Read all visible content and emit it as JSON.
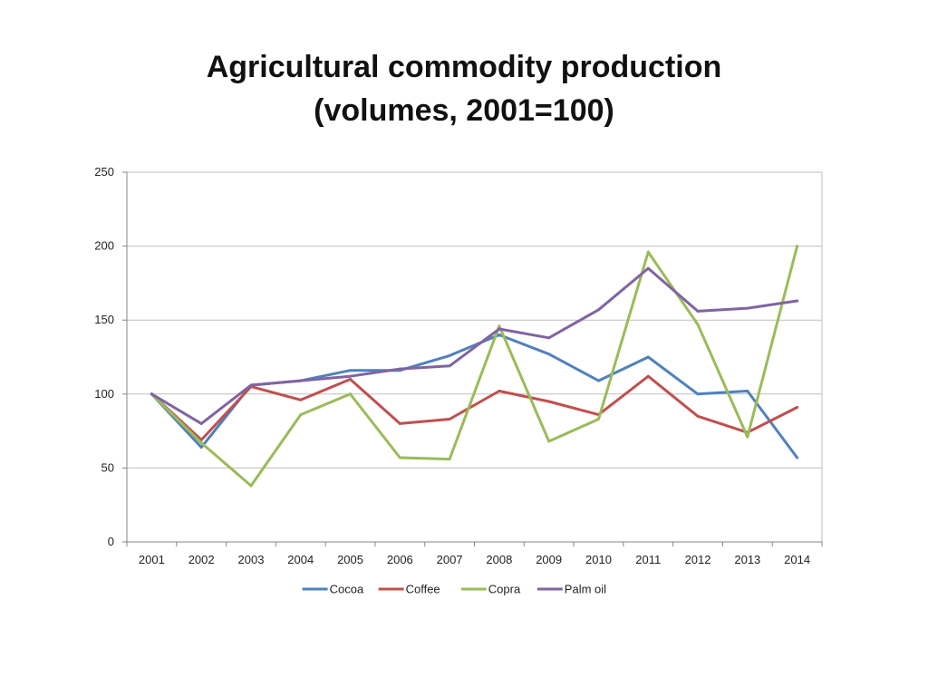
{
  "title_line1": "Agricultural commodity production",
  "title_line2": "(volumes, 2001=100)",
  "chart_data": {
    "type": "line",
    "title": "Agricultural commodity production (volumes, 2001=100)",
    "xlabel": "",
    "ylabel": "",
    "x": [
      "2001",
      "2002",
      "2003",
      "2004",
      "2005",
      "2006",
      "2007",
      "2008",
      "2009",
      "2010",
      "2011",
      "2012",
      "2013",
      "2014"
    ],
    "ylim": [
      0,
      250
    ],
    "yticks": [
      0,
      50,
      100,
      150,
      200,
      250
    ],
    "grid": true,
    "legend_position": "bottom",
    "series": [
      {
        "name": "Cocoa",
        "color": "#4F81BD",
        "values": [
          100,
          64,
          106,
          109,
          116,
          116,
          126,
          140,
          127,
          109,
          125,
          100,
          102,
          57
        ]
      },
      {
        "name": "Coffee",
        "color": "#C0504D",
        "values": [
          100,
          69,
          105,
          96,
          110,
          80,
          83,
          102,
          95,
          86,
          112,
          85,
          74,
          91
        ]
      },
      {
        "name": "Copra",
        "color": "#9BBB59",
        "values": [
          100,
          67,
          38,
          86,
          100,
          57,
          56,
          146,
          68,
          83,
          196,
          147,
          71,
          200
        ]
      },
      {
        "name": "Palm oil",
        "color": "#8064A2",
        "values": [
          100,
          80,
          106,
          109,
          112,
          117,
          119,
          144,
          138,
          157,
          185,
          156,
          158,
          163
        ]
      }
    ]
  }
}
